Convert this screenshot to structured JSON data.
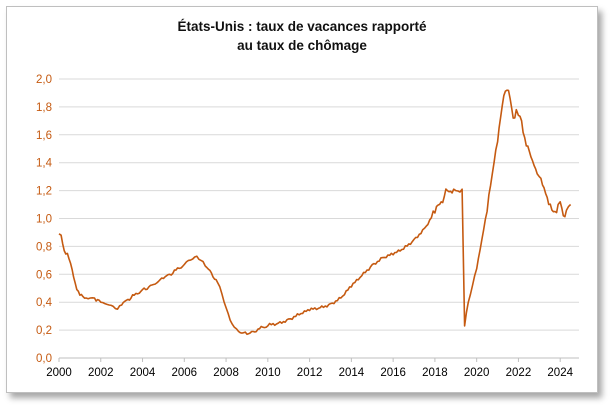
{
  "chart_data": {
    "type": "line",
    "title_line1": "États-Unis : taux de vacances rapporté",
    "title_line2": "au taux de chômage",
    "xlabel": "",
    "ylabel": "",
    "xlim": [
      2000,
      2024.9
    ],
    "ylim": [
      0,
      2.0
    ],
    "x_ticks": [
      {
        "value": 2000,
        "label": "2000"
      },
      {
        "value": 2002,
        "label": "2002"
      },
      {
        "value": 2004,
        "label": "2004"
      },
      {
        "value": 2006,
        "label": "2006"
      },
      {
        "value": 2008,
        "label": "2008"
      },
      {
        "value": 2010,
        "label": "2010"
      },
      {
        "value": 2012,
        "label": "2012"
      },
      {
        "value": 2014,
        "label": "2014"
      },
      {
        "value": 2016,
        "label": "2016"
      },
      {
        "value": 2018,
        "label": "2018"
      },
      {
        "value": 2020,
        "label": "2020"
      },
      {
        "value": 2022,
        "label": "2022"
      },
      {
        "value": 2024,
        "label": "2024"
      }
    ],
    "y_ticks": [
      {
        "value": 0.0,
        "label": "0,0"
      },
      {
        "value": 0.2,
        "label": "0,2"
      },
      {
        "value": 0.4,
        "label": "0,4"
      },
      {
        "value": 0.6,
        "label": "0,6"
      },
      {
        "value": 0.8,
        "label": "0,8"
      },
      {
        "value": 1.0,
        "label": "1,0"
      },
      {
        "value": 1.2,
        "label": "1,2"
      },
      {
        "value": 1.4,
        "label": "1,4"
      },
      {
        "value": 1.6,
        "label": "1,6"
      },
      {
        "value": 1.8,
        "label": "1,8"
      },
      {
        "value": 2.0,
        "label": "2,0"
      }
    ],
    "grid": "horizontal",
    "legend": "none",
    "colors": {
      "series": "#c55a11",
      "tick_labels_y": "#c55a11",
      "tick_labels_x": "#000000",
      "grid": "#d9d9d9",
      "axis": "#bfbfbf"
    },
    "series": [
      {
        "x": [
          2000.0,
          2000.1,
          2000.25,
          2000.4,
          2000.55,
          2000.7,
          2000.85,
          2001.0,
          2001.15,
          2001.3,
          2001.5,
          2001.7,
          2002.0,
          2002.2,
          2002.4,
          2002.6,
          2002.8,
          2003.0,
          2003.3,
          2003.6,
          2004.0,
          2004.3,
          2004.6,
          2005.0,
          2005.3,
          2005.6,
          2006.0,
          2006.2,
          2006.4,
          2006.6,
          2006.8,
          2007.0,
          2007.3,
          2007.6,
          2007.8,
          2008.0,
          2008.2,
          2008.4,
          2008.6,
          2009.0,
          2009.3,
          2009.6,
          2010.0,
          2010.5,
          2011.0,
          2011.5,
          2012.0,
          2012.5,
          2013.0,
          2013.5,
          2014.0,
          2014.5,
          2015.0,
          2015.5,
          2016.0,
          2016.5,
          2017.0,
          2017.5,
          2018.0,
          2018.3,
          2018.6,
          2018.9,
          2019.0,
          2019.2,
          2019.3,
          2019.42,
          2019.6,
          2019.8,
          2020.0,
          2020.25,
          2020.5,
          2020.75,
          2021.0,
          2021.15,
          2021.3,
          2021.45,
          2021.6,
          2021.75,
          2021.9,
          2022.0,
          2022.15,
          2022.3,
          2022.45,
          2022.6,
          2022.75,
          2022.9,
          2023.0,
          2023.15,
          2023.3,
          2023.45,
          2023.6,
          2023.75,
          2023.9,
          2024.0,
          2024.15,
          2024.3,
          2024.5
        ],
        "y": [
          0.89,
          0.88,
          0.77,
          0.75,
          0.68,
          0.58,
          0.49,
          0.45,
          0.44,
          0.43,
          0.43,
          0.43,
          0.4,
          0.39,
          0.38,
          0.37,
          0.35,
          0.38,
          0.42,
          0.45,
          0.49,
          0.51,
          0.53,
          0.57,
          0.6,
          0.63,
          0.67,
          0.7,
          0.71,
          0.73,
          0.7,
          0.66,
          0.61,
          0.54,
          0.46,
          0.36,
          0.27,
          0.22,
          0.19,
          0.17,
          0.19,
          0.21,
          0.23,
          0.25,
          0.28,
          0.31,
          0.34,
          0.36,
          0.39,
          0.43,
          0.51,
          0.59,
          0.67,
          0.72,
          0.74,
          0.78,
          0.85,
          0.93,
          1.04,
          1.12,
          1.2,
          1.21,
          1.2,
          1.19,
          1.21,
          0.23,
          0.4,
          0.52,
          0.64,
          0.85,
          1.05,
          1.32,
          1.55,
          1.73,
          1.88,
          1.92,
          1.86,
          1.72,
          1.78,
          1.74,
          1.7,
          1.58,
          1.52,
          1.44,
          1.38,
          1.32,
          1.3,
          1.24,
          1.18,
          1.1,
          1.06,
          1.05,
          1.1,
          1.12,
          1.02,
          1.06,
          1.1
        ]
      }
    ]
  }
}
